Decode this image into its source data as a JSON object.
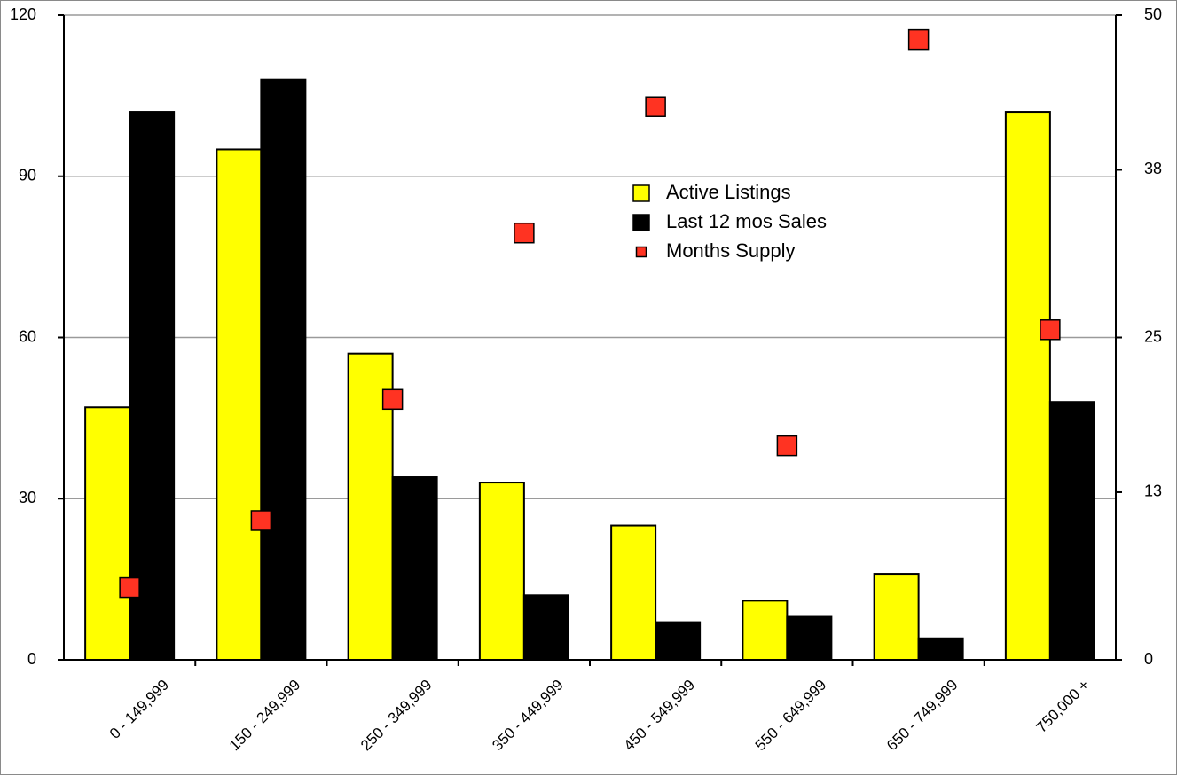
{
  "chart_data": {
    "type": "bar",
    "categories": [
      "0 - 149,999",
      "150 - 249,999",
      "250 - 349,999",
      "350 - 449,999",
      "450 - 549,999",
      "550 - 649,999",
      "650 - 749,999",
      "750,000 +"
    ],
    "series": [
      {
        "name": "Active Listings",
        "type": "bar",
        "axis": "left",
        "color": "#ffff00",
        "values": [
          47,
          95,
          57,
          33,
          25,
          11,
          16,
          102
        ]
      },
      {
        "name": "Last 12 mos Sales",
        "type": "bar",
        "axis": "left",
        "color": "#000000",
        "values": [
          102,
          108,
          34,
          12,
          7,
          8,
          4,
          48
        ]
      },
      {
        "name": "Months Supply",
        "type": "scatter",
        "axis": "right",
        "color": "#ff3322",
        "values": [
          5.6,
          10.8,
          20.2,
          33.1,
          42.9,
          16.6,
          48.1,
          25.6
        ]
      }
    ],
    "left_axis": {
      "ylim": [
        0,
        120
      ],
      "ticks": [
        0,
        30,
        60,
        90,
        120
      ]
    },
    "right_axis": {
      "ylim": [
        0,
        50
      ],
      "ticks": [
        0,
        13,
        25,
        38,
        50
      ]
    },
    "grid": true,
    "legend_position": "top-center"
  }
}
